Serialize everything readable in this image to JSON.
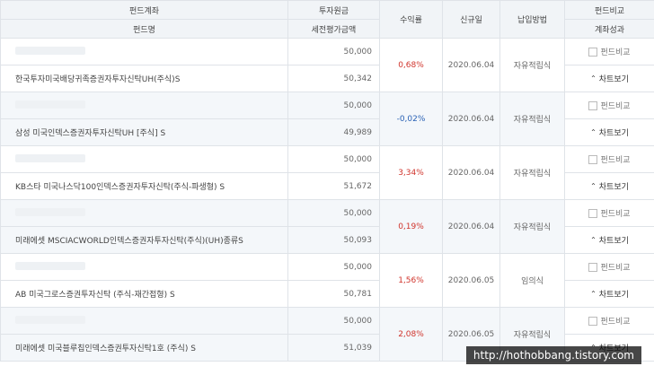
{
  "header": {
    "col1_top": "펀드계좌",
    "col1_bottom": "펀드명",
    "col2_top": "투자원금",
    "col2_bottom": "세전평가금액",
    "col3": "수익률",
    "col4": "신규일",
    "col5": "납입방법",
    "col6_top": "펀드비교",
    "col6_bottom": "계좌성과"
  },
  "compare_label": "펀드비교",
  "detail_label": "차트보기",
  "rows": [
    {
      "name": "한국투자미국배당귀족증권자투자신탁UH(주식)S",
      "principal": "50,000",
      "value": "50,342",
      "rate": "0,68%",
      "date": "2020.06.04",
      "method": "자유적립식",
      "sign": "pos"
    },
    {
      "name": "삼성 미국인덱스증권자투자신탁UH [주식] S",
      "principal": "50,000",
      "value": "49,989",
      "rate": "-0,02%",
      "date": "2020.06.04",
      "method": "자유적립식",
      "sign": "neg"
    },
    {
      "name": "KB스타 미국나스닥100인덱스증권자투자신탁(주식-파생형) S",
      "principal": "50,000",
      "value": "51,672",
      "rate": "3,34%",
      "date": "2020.06.04",
      "method": "자유적립식",
      "sign": "pos"
    },
    {
      "name": "미래에셋 MSCIACWORLD인덱스증권자투자신탁(주식)(UH)종류S",
      "principal": "50,000",
      "value": "50,093",
      "rate": "0,19%",
      "date": "2020.06.04",
      "method": "자유적립식",
      "sign": "pos"
    },
    {
      "name": "AB 미국그로스증권투자신탁 (주식-재간접형) S",
      "principal": "50,000",
      "value": "50,781",
      "rate": "1,56%",
      "date": "2020.06.05",
      "method": "임의식",
      "sign": "pos"
    },
    {
      "name": "미래에셋 미국블루칩인덱스증권투자신탁1호 (주식) S",
      "principal": "50,000",
      "value": "51,039",
      "rate": "2,08%",
      "date": "2020.06.05",
      "method": "자유적립식",
      "sign": "pos"
    }
  ],
  "watermark": "http://hothobbang.tistory.com",
  "icons": {
    "compare": "checkbox-icon",
    "detail": "chevron-up-icon"
  }
}
